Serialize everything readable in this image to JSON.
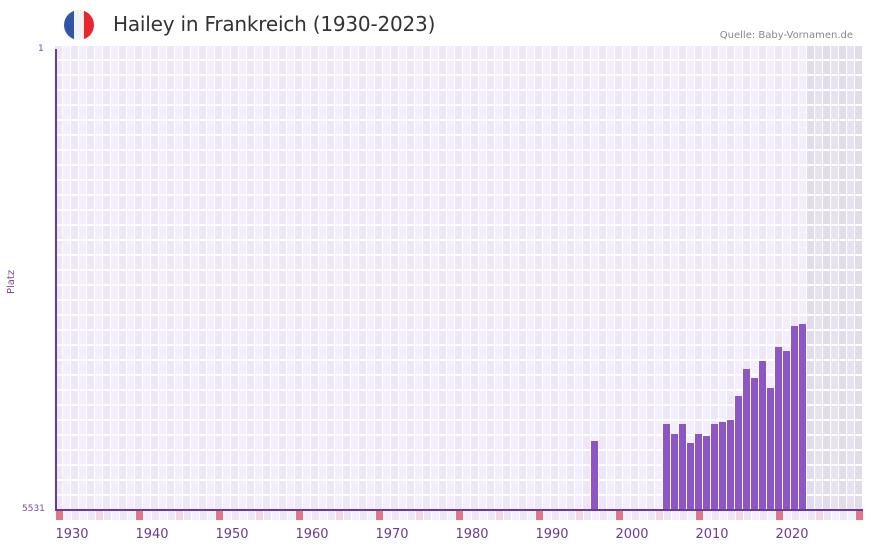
{
  "header": {
    "title": "Hailey in Frankreich (1930-2023)",
    "source": "Quelle: Baby-Vornamen.de",
    "flag_colors": [
      "#2f56a6",
      "#f2f2f2",
      "#e8262f"
    ]
  },
  "colors": {
    "bar": "#8e55c6",
    "axis": "#6a3a9a",
    "grid_a": "#ece6f8",
    "grid_b": "#f2eefb",
    "future_a": "#e0dcec",
    "future_b": "#e6e2ef",
    "decade_marker": "#e57580",
    "half_decade_marker": "#f5d6de"
  },
  "chart_data": {
    "type": "bar",
    "title": "Hailey in Frankreich (1930-2023)",
    "xlabel": "",
    "ylabel": "Platz",
    "y_inverted": true,
    "ylim": [
      5531,
      1
    ],
    "y_tick_labels": [
      "1",
      "5531"
    ],
    "x_range": [
      1928,
      2028
    ],
    "x_tick_labels": [
      "1930",
      "1940",
      "1950",
      "1960",
      "1970",
      "1980",
      "1990",
      "2000",
      "2010",
      "2020"
    ],
    "future_shaded_from": 2022,
    "grid": true,
    "legend": null,
    "categories": [
      1995,
      2004,
      2005,
      2006,
      2007,
      2008,
      2009,
      2010,
      2011,
      2012,
      2013,
      2014,
      2015,
      2016,
      2017,
      2018,
      2019,
      2020,
      2021
    ],
    "values": [
      831,
      1036,
      908,
      1036,
      799,
      908,
      892,
      1026,
      1050,
      1083,
      1367,
      1689,
      1583,
      1786,
      1458,
      1952,
      1906,
      2213,
      2226
    ],
    "value_meaning": "bar height in rank-units above bottom (rank = 5531 - value)",
    "ranks": [
      4700,
      4495,
      4623,
      4495,
      4732,
      4623,
      4639,
      4505,
      4481,
      4448,
      4164,
      3842,
      3948,
      3745,
      4073,
      3579,
      3625,
      3318,
      3305
    ]
  }
}
